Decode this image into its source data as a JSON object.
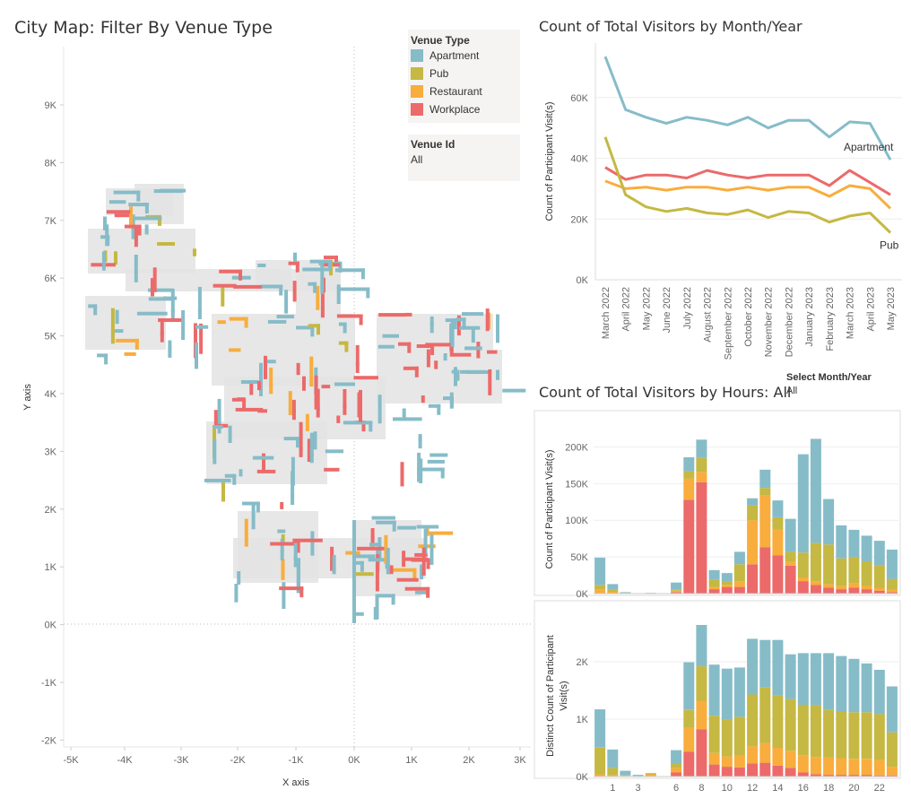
{
  "map": {
    "title": "City Map: Filter By Venue Type",
    "x_axis_title": "X axis",
    "y_axis_title": "Y axis",
    "x_ticks": [
      "-5K",
      "-4K",
      "-3K",
      "-2K",
      "-1K",
      "0K",
      "1K",
      "2K",
      "3K"
    ],
    "y_ticks": [
      "9K",
      "8K",
      "7K",
      "6K",
      "5K",
      "4K",
      "3K",
      "2K",
      "1K",
      "0K",
      "-1K",
      "-2K"
    ],
    "legend_title": "Venue Type",
    "legend_items": [
      {
        "label": "Apartment",
        "color": "#86bcc8"
      },
      {
        "label": "Pub",
        "color": "#c5b843"
      },
      {
        "label": "Restaurant",
        "color": "#f8ad3d"
      },
      {
        "label": "Workplace",
        "color": "#ec6a6a"
      }
    ],
    "venue_id_label": "Venue Id",
    "venue_id_value": "All"
  },
  "line_chart": {
    "title": "Count of Total Visitors by Month/Year",
    "y_axis_title": "Count of Participant Visit(s)"
  },
  "month_filter": {
    "label": "Select Month/Year",
    "value": "All"
  },
  "hours_chart": {
    "title": "Count of Total Visitors by Hours: All",
    "top_y_title": "Count of Participant Visit(s)",
    "bottom_y_title_line1": "Distinct Count of Participant",
    "bottom_y_title_line2": "Visit(s)"
  },
  "chart_data": [
    {
      "type": "line",
      "title": "Count of Total Visitors by Month/Year",
      "ylabel": "Count of Participant Visit(s)",
      "ylim": [
        0,
        75000
      ],
      "y_ticks": [
        "0K",
        "20K",
        "40K",
        "60K"
      ],
      "x": [
        "March 2022",
        "April 2022",
        "May 2022",
        "June 2022",
        "July 2022",
        "August 2022",
        "September 2022",
        "October 2022",
        "November 2022",
        "December 2022",
        "January 2023",
        "February 2023",
        "March 2023",
        "April 2023",
        "May 2023"
      ],
      "series": [
        {
          "name": "Apartment",
          "color": "#86bcc8",
          "values": [
            73500,
            56000,
            53500,
            51500,
            53500,
            52500,
            51000,
            53500,
            50000,
            52500,
            52500,
            47000,
            52000,
            51500,
            39500
          ]
        },
        {
          "name": "Workplace",
          "color": "#ec6a6a",
          "values": [
            37000,
            33000,
            34500,
            34500,
            33500,
            36000,
            34500,
            33500,
            34500,
            34500,
            34500,
            31000,
            36000,
            32000,
            28000
          ]
        },
        {
          "name": "Restaurant",
          "color": "#f8ad3d",
          "values": [
            32500,
            30000,
            30500,
            29500,
            30500,
            30500,
            29500,
            30500,
            29500,
            30500,
            30500,
            27500,
            31000,
            30000,
            23500
          ]
        },
        {
          "name": "Pub",
          "color": "#c5b843",
          "values": [
            47000,
            28000,
            24000,
            22500,
            23500,
            22000,
            21500,
            23000,
            20500,
            22500,
            22000,
            19000,
            21000,
            22000,
            15500
          ]
        }
      ]
    },
    {
      "type": "bar",
      "title": "Count of Total Visitors by Hours: All",
      "ylabel": "Count of Participant Visit(s)",
      "stacked": true,
      "ylim": [
        0,
        225000
      ],
      "y_ticks": [
        "0K",
        "50K",
        "100K",
        "150K",
        "200K"
      ],
      "categories": [
        "0",
        "1",
        "2",
        "3",
        "4",
        "5",
        "6",
        "7",
        "8",
        "9",
        "10",
        "11",
        "12",
        "13",
        "14",
        "15",
        "16",
        "17",
        "18",
        "19",
        "20",
        "21",
        "22",
        "23"
      ],
      "series": [
        {
          "name": "Workplace",
          "color": "#ec6a6a",
          "values": [
            500,
            0,
            0,
            0,
            0,
            0,
            2000,
            128000,
            152000,
            6000,
            9000,
            9000,
            40000,
            63000,
            52000,
            38000,
            17000,
            12000,
            8000,
            6000,
            8000,
            6000,
            4000,
            2000
          ]
        },
        {
          "name": "Restaurant",
          "color": "#f8ad3d",
          "values": [
            5500,
            3000,
            1000,
            0,
            0,
            0,
            2000,
            29000,
            14000,
            3000,
            3000,
            8000,
            60000,
            71000,
            35000,
            5000,
            5000,
            5000,
            5000,
            4000,
            6000,
            5000,
            4000,
            3000
          ]
        },
        {
          "name": "Pub",
          "color": "#c5b843",
          "values": [
            6000,
            2000,
            0,
            0,
            0,
            0,
            2000,
            10000,
            19000,
            10000,
            5000,
            23000,
            20000,
            10000,
            17000,
            14000,
            34000,
            52000,
            54000,
            38000,
            36000,
            33000,
            31000,
            15000
          ]
        },
        {
          "name": "Apartment",
          "color": "#86bcc8",
          "values": [
            37000,
            8000,
            1000,
            0,
            1000,
            0,
            9000,
            19000,
            25000,
            13000,
            11000,
            17000,
            10000,
            25000,
            23000,
            45000,
            134000,
            142000,
            62000,
            45000,
            37000,
            35000,
            33000,
            40000
          ]
        }
      ]
    },
    {
      "type": "bar",
      "ylabel": "Distinct Count of Participant Visit(s)",
      "stacked": true,
      "ylim": [
        0,
        2750
      ],
      "y_ticks": [
        "0K",
        "1K",
        "2K"
      ],
      "categories": [
        "0",
        "1",
        "2",
        "3",
        "4",
        "5",
        "6",
        "7",
        "8",
        "9",
        "10",
        "11",
        "12",
        "13",
        "14",
        "15",
        "16",
        "17",
        "18",
        "19",
        "20",
        "21",
        "22",
        "23"
      ],
      "x_ticks": [
        "1",
        "3",
        "6",
        "8",
        "10",
        "12",
        "14",
        "16",
        "18",
        "20",
        "22"
      ],
      "series": [
        {
          "name": "Workplace",
          "color": "#ec6a6a",
          "values": [
            0,
            0,
            0,
            0,
            0,
            0,
            70,
            430,
            820,
            210,
            170,
            160,
            230,
            240,
            190,
            150,
            70,
            40,
            30,
            30,
            30,
            30,
            20,
            20
          ]
        },
        {
          "name": "Restaurant",
          "color": "#f8ad3d",
          "values": [
            40,
            20,
            10,
            10,
            40,
            0,
            80,
            420,
            500,
            200,
            180,
            200,
            300,
            340,
            310,
            300,
            300,
            300,
            300,
            290,
            280,
            280,
            270,
            150
          ]
        },
        {
          "name": "Pub",
          "color": "#c5b843",
          "values": [
            470,
            130,
            10,
            0,
            20,
            0,
            70,
            310,
            600,
            650,
            640,
            680,
            900,
            970,
            920,
            900,
            880,
            900,
            830,
            820,
            810,
            810,
            800,
            600
          ]
        },
        {
          "name": "Apartment",
          "color": "#86bcc8",
          "values": [
            660,
            320,
            80,
            20,
            0,
            0,
            240,
            830,
            720,
            890,
            890,
            860,
            970,
            830,
            960,
            780,
            900,
            910,
            990,
            960,
            930,
            850,
            770,
            800
          ]
        }
      ]
    }
  ]
}
